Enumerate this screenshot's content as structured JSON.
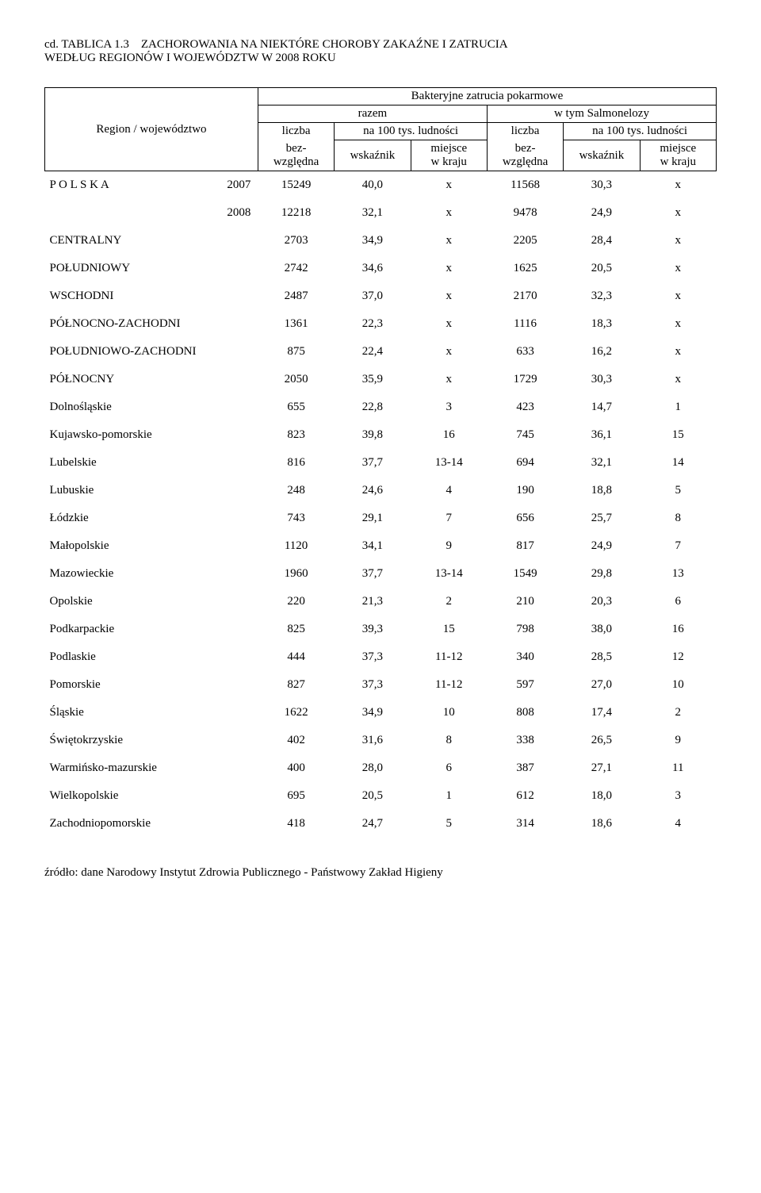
{
  "title": {
    "prefix": "cd. TABLICA 1.3",
    "rest1": "ZACHOROWANIA NA NIEKTÓRE CHOROBY ZAKAŹNE I ZATRUCIA",
    "line2": "WEDŁUG REGIONÓW I WOJEWÓDZTW W 2008 ROKU"
  },
  "header": {
    "region": "Region / województwo",
    "top": "Bakteryjne zatrucia pokarmowe",
    "razem": "razem",
    "wtym": "w tym  Salmonelozy",
    "liczba": "liczba",
    "bez": "bez-",
    "wzgledna": "względna",
    "na100": "na 100 tys. ludności",
    "wskaznik": "wskaźnik",
    "miejsce": "miejsce",
    "wkraju": "w kraju"
  },
  "rows": [
    {
      "region": "P O L S K A",
      "year": "2007",
      "v": [
        "15249",
        "40,0",
        "x",
        "11568",
        "30,3",
        "x"
      ]
    },
    {
      "region": "",
      "year": "2008",
      "v": [
        "12218",
        "32,1",
        "x",
        "9478",
        "24,9",
        "x"
      ]
    },
    {
      "region": "CENTRALNY",
      "year": "",
      "v": [
        "2703",
        "34,9",
        "x",
        "2205",
        "28,4",
        "x"
      ]
    },
    {
      "region": "POŁUDNIOWY",
      "year": "",
      "v": [
        "2742",
        "34,6",
        "x",
        "1625",
        "20,5",
        "x"
      ]
    },
    {
      "region": "WSCHODNI",
      "year": "",
      "v": [
        "2487",
        "37,0",
        "x",
        "2170",
        "32,3",
        "x"
      ]
    },
    {
      "region": "PÓŁNOCNO-ZACHODNI",
      "year": "",
      "v": [
        "1361",
        "22,3",
        "x",
        "1116",
        "18,3",
        "x"
      ]
    },
    {
      "region": "POŁUDNIOWO-ZACHODNI",
      "year": "",
      "v": [
        "875",
        "22,4",
        "x",
        "633",
        "16,2",
        "x"
      ]
    },
    {
      "region": "PÓŁNOCNY",
      "year": "",
      "v": [
        "2050",
        "35,9",
        "x",
        "1729",
        "30,3",
        "x"
      ]
    },
    {
      "region": "Dolnośląskie",
      "year": "",
      "v": [
        "655",
        "22,8",
        "3",
        "423",
        "14,7",
        "1"
      ]
    },
    {
      "region": "Kujawsko-pomorskie",
      "year": "",
      "v": [
        "823",
        "39,8",
        "16",
        "745",
        "36,1",
        "15"
      ]
    },
    {
      "region": "Lubelskie",
      "year": "",
      "v": [
        "816",
        "37,7",
        "13-14",
        "694",
        "32,1",
        "14"
      ]
    },
    {
      "region": "Lubuskie",
      "year": "",
      "v": [
        "248",
        "24,6",
        "4",
        "190",
        "18,8",
        "5"
      ]
    },
    {
      "region": "Łódzkie",
      "year": "",
      "v": [
        "743",
        "29,1",
        "7",
        "656",
        "25,7",
        "8"
      ]
    },
    {
      "region": "Małopolskie",
      "year": "",
      "v": [
        "1120",
        "34,1",
        "9",
        "817",
        "24,9",
        "7"
      ]
    },
    {
      "region": "Mazowieckie",
      "year": "",
      "v": [
        "1960",
        "37,7",
        "13-14",
        "1549",
        "29,8",
        "13"
      ]
    },
    {
      "region": "Opolskie",
      "year": "",
      "v": [
        "220",
        "21,3",
        "2",
        "210",
        "20,3",
        "6"
      ]
    },
    {
      "region": "Podkarpackie",
      "year": "",
      "v": [
        "825",
        "39,3",
        "15",
        "798",
        "38,0",
        "16"
      ]
    },
    {
      "region": "Podlaskie",
      "year": "",
      "v": [
        "444",
        "37,3",
        "11-12",
        "340",
        "28,5",
        "12"
      ]
    },
    {
      "region": "Pomorskie",
      "year": "",
      "v": [
        "827",
        "37,3",
        "11-12",
        "597",
        "27,0",
        "10"
      ]
    },
    {
      "region": "Śląskie",
      "year": "",
      "v": [
        "1622",
        "34,9",
        "10",
        "808",
        "17,4",
        "2"
      ]
    },
    {
      "region": "Świętokrzyskie",
      "year": "",
      "v": [
        "402",
        "31,6",
        "8",
        "338",
        "26,5",
        "9"
      ]
    },
    {
      "region": "Warmińsko-mazurskie",
      "year": "",
      "v": [
        "400",
        "28,0",
        "6",
        "387",
        "27,1",
        "11"
      ]
    },
    {
      "region": "Wielkopolskie",
      "year": "",
      "v": [
        "695",
        "20,5",
        "1",
        "612",
        "18,0",
        "3"
      ]
    },
    {
      "region": "Zachodniopomorskie",
      "year": "",
      "v": [
        "418",
        "24,7",
        "5",
        "314",
        "18,6",
        "4"
      ]
    }
  ],
  "source": "źródło: dane Narodowy Instytut Zdrowia Publicznego - Państwowy Zakład Higieny"
}
